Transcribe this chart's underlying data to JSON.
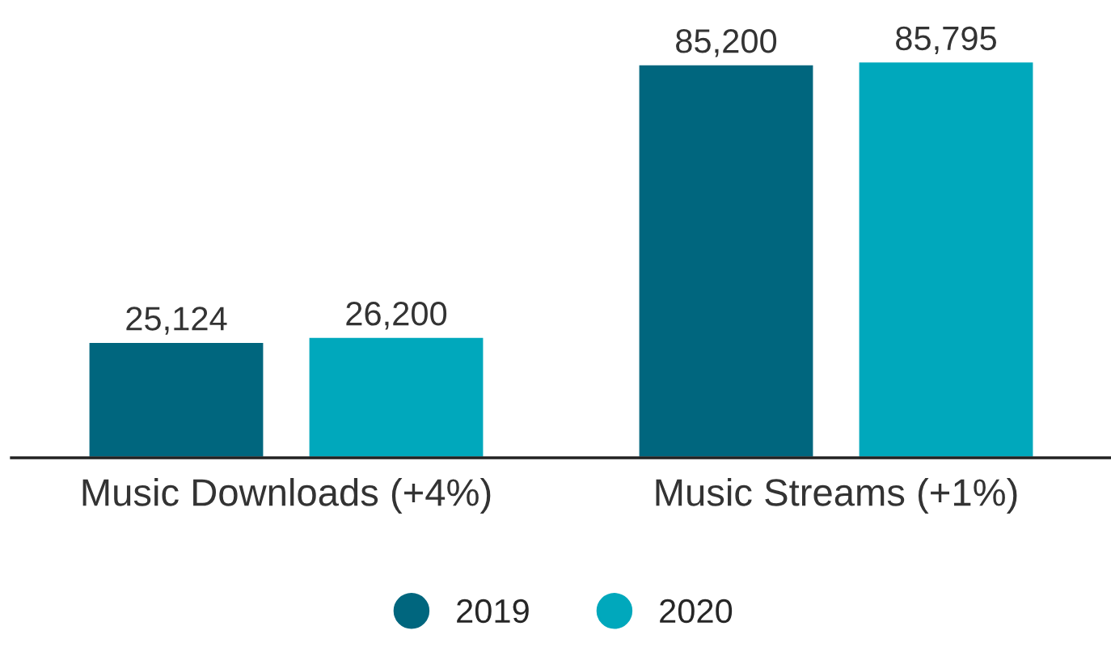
{
  "chart_data": {
    "type": "bar",
    "categories": [
      "Music Downloads (+4%)",
      "Music Streams (+1%)"
    ],
    "series": [
      {
        "name": "2019",
        "color": "#00667e",
        "values": [
          25124,
          85200
        ],
        "value_labels": [
          "25,124",
          "85,200"
        ]
      },
      {
        "name": "2020",
        "color": "#00a8bc",
        "values": [
          26200,
          85795
        ],
        "value_labels": [
          "26,200",
          "85,795"
        ]
      }
    ],
    "legend": "bottom",
    "grid": false
  }
}
